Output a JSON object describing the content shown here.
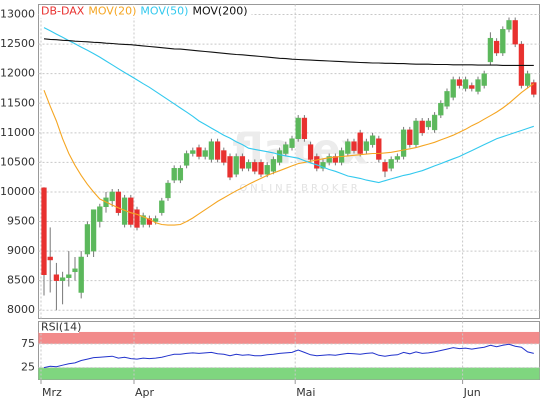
{
  "chart_data": [
    {
      "type": "candlestick",
      "name": "DB-DAX",
      "name_color": "#e8312f",
      "color_up": "#5cb85c",
      "color_down": "#e8312f",
      "categories": [
        "Mrz",
        null,
        null,
        null,
        null,
        null,
        null,
        null,
        null,
        null,
        null,
        null,
        null,
        null,
        null,
        "Apr",
        null,
        null,
        null,
        null,
        null,
        null,
        null,
        null,
        null,
        null,
        null,
        null,
        null,
        null,
        null,
        null,
        null,
        null,
        null,
        null,
        null,
        null,
        null,
        null,
        null,
        "Mai",
        null,
        null,
        null,
        null,
        null,
        null,
        null,
        null,
        null,
        null,
        null,
        null,
        null,
        null,
        null,
        null,
        null,
        null,
        null,
        null,
        null,
        null,
        null,
        null,
        null,
        null,
        "Jun",
        null,
        null,
        null,
        null,
        null,
        null,
        null,
        null,
        null,
        null,
        null
      ],
      "open": [
        10070,
        8900,
        8600,
        8500,
        8550,
        8650,
        8300,
        8950,
        9000,
        9500,
        9750,
        9850,
        10000,
        9450,
        9900,
        9700,
        9450,
        9550,
        9500,
        9650,
        9900,
        10200,
        10200,
        10450,
        10650,
        10750,
        10600,
        10550,
        10850,
        10700,
        10600,
        10300,
        10600,
        10400,
        10500,
        10500,
        10300,
        10350,
        10500,
        10650,
        10750,
        10900,
        11250,
        10800,
        10600,
        10400,
        10500,
        10600,
        10500,
        10650,
        10850,
        11000,
        10700,
        10800,
        10900,
        10500,
        10400,
        10550,
        10600,
        11050,
        10800,
        11200,
        11100,
        11050,
        11300,
        11450,
        11600,
        11900,
        11750,
        11800,
        11700,
        11800,
        12200,
        12550,
        12350,
        12750,
        12900,
        12500,
        11800,
        11850
      ],
      "high": [
        10080,
        9400,
        8800,
        8650,
        9000,
        8900,
        9000,
        9500,
        9700,
        9800,
        10000,
        10050,
        10050,
        9950,
        9950,
        9750,
        9650,
        9600,
        9600,
        9900,
        10200,
        10450,
        10450,
        10700,
        10750,
        10800,
        10750,
        10900,
        10900,
        10750,
        10650,
        10650,
        10650,
        10550,
        10550,
        10550,
        10500,
        10600,
        10750,
        10850,
        10950,
        11300,
        11300,
        10850,
        10650,
        10550,
        10650,
        10650,
        10750,
        10900,
        10900,
        11050,
        10900,
        11000,
        10950,
        10550,
        10600,
        10650,
        11100,
        11100,
        11250,
        11250,
        11250,
        11350,
        11550,
        11750,
        11950,
        11950,
        11950,
        11850,
        11950,
        12050,
        12700,
        12600,
        12800,
        12950,
        12950,
        12550,
        12050,
        11900
      ],
      "low": [
        8250,
        8300,
        8000,
        8100,
        8400,
        8500,
        8200,
        8900,
        8900,
        9400,
        9650,
        9750,
        9600,
        9400,
        9400,
        9350,
        9400,
        9400,
        9450,
        9600,
        9850,
        10150,
        10150,
        10400,
        10600,
        10550,
        10550,
        10500,
        10500,
        10450,
        10200,
        10250,
        10350,
        10350,
        10300,
        10250,
        10250,
        10300,
        10450,
        10600,
        10700,
        10850,
        10850,
        10500,
        10350,
        10350,
        10450,
        10450,
        10450,
        10600,
        10650,
        10600,
        10650,
        10750,
        10500,
        10250,
        10350,
        10500,
        10550,
        10750,
        10750,
        10950,
        11050,
        11000,
        11250,
        11400,
        11550,
        11750,
        11700,
        11700,
        11650,
        11750,
        12150,
        12300,
        12300,
        12700,
        12450,
        11750,
        11750,
        11600
      ],
      "close": [
        8600,
        8850,
        8500,
        8550,
        8600,
        8700,
        8900,
        9450,
        9700,
        9750,
        9900,
        10000,
        9650,
        9900,
        9450,
        9400,
        9600,
        9450,
        9550,
        9850,
        10150,
        10400,
        10400,
        10650,
        10700,
        10600,
        10700,
        10850,
        10550,
        10500,
        10250,
        10600,
        10400,
        10500,
        10350,
        10300,
        10450,
        10550,
        10700,
        10800,
        10900,
        11250,
        10900,
        10550,
        10400,
        10500,
        10600,
        10500,
        10700,
        10850,
        10700,
        10650,
        10850,
        10950,
        10550,
        10350,
        10550,
        10600,
        11050,
        10800,
        11200,
        11000,
        11200,
        11300,
        11500,
        11700,
        11900,
        11800,
        11900,
        11750,
        11900,
        12000,
        12600,
        12350,
        12750,
        12900,
        12500,
        11800,
        12000,
        11650
      ],
      "overlays": [
        {
          "name": "MOV(20)",
          "color": "#f5a623",
          "values": [
            11720,
            11450,
            11200,
            10900,
            10650,
            10450,
            10280,
            10130,
            10000,
            9880,
            9830,
            9780,
            9730,
            9690,
            9650,
            9620,
            9580,
            9540,
            9480,
            9450,
            9440,
            9440,
            9450,
            9500,
            9560,
            9630,
            9700,
            9770,
            9840,
            9900,
            9960,
            10020,
            10070,
            10130,
            10180,
            10230,
            10280,
            10320,
            10360,
            10400,
            10440,
            10480,
            10500,
            10520,
            10540,
            10560,
            10580,
            10590,
            10600,
            10610,
            10620,
            10630,
            10640,
            10650,
            10650,
            10660,
            10670,
            10690,
            10710,
            10730,
            10750,
            10780,
            10810,
            10840,
            10880,
            10920,
            10960,
            11010,
            11060,
            11120,
            11170,
            11230,
            11290,
            11350,
            11420,
            11500,
            11590,
            11680,
            11760,
            11830
          ]
        },
        {
          "name": "MOV(50)",
          "color": "#33c9ee",
          "values": [
            12780,
            12725,
            12670,
            12615,
            12560,
            12505,
            12450,
            12395,
            12340,
            12280,
            12215,
            12150,
            12085,
            12020,
            11960,
            11895,
            11830,
            11770,
            11700,
            11630,
            11560,
            11490,
            11420,
            11350,
            11280,
            11200,
            11140,
            11080,
            11020,
            10960,
            10910,
            10850,
            10800,
            10740,
            10720,
            10700,
            10680,
            10660,
            10630,
            10610,
            10590,
            10570,
            10530,
            10490,
            10460,
            10420,
            10380,
            10350,
            10310,
            10270,
            10250,
            10230,
            10200,
            10180,
            10160,
            10190,
            10220,
            10250,
            10280,
            10300,
            10330,
            10360,
            10400,
            10440,
            10480,
            10520,
            10560,
            10600,
            10650,
            10700,
            10750,
            10800,
            10850,
            10900,
            10935,
            10970,
            11005,
            11040,
            11075,
            11110
          ]
        },
        {
          "name": "MOV(200)",
          "color": "#111111",
          "values": [
            12590,
            12580,
            12575,
            12565,
            12560,
            12550,
            12545,
            12540,
            12530,
            12525,
            12515,
            12510,
            12500,
            12495,
            12490,
            12480,
            12470,
            12460,
            12450,
            12440,
            12430,
            12420,
            12415,
            12405,
            12395,
            12385,
            12375,
            12365,
            12355,
            12345,
            12335,
            12325,
            12320,
            12310,
            12300,
            12290,
            12280,
            12270,
            12260,
            12255,
            12245,
            12240,
            12235,
            12230,
            12225,
            12220,
            12215,
            12210,
            12205,
            12200,
            12195,
            12190,
            12185,
            12180,
            12180,
            12175,
            12175,
            12170,
            12170,
            12165,
            12160,
            12160,
            12160,
            12155,
            12155,
            12155,
            12150,
            12150,
            12150,
            12150,
            12145,
            12145,
            12145,
            12145,
            12140,
            12140,
            12140,
            12140,
            12140,
            12140
          ]
        }
      ],
      "ylim": [
        7860,
        13170
      ],
      "yticks": [
        8000,
        8500,
        9000,
        9500,
        10000,
        10500,
        11000,
        11500,
        12000,
        12500,
        13000
      ],
      "grid": true,
      "watermark": [
        "flatex",
        "ONLINE BROKER"
      ]
    },
    {
      "type": "line",
      "title": "RSI(14)",
      "color": "#2233cc",
      "values": [
        25,
        28,
        27,
        30,
        33,
        35,
        40,
        43,
        46,
        47,
        48,
        49,
        45,
        47,
        44,
        43,
        45,
        44,
        45,
        47,
        50,
        53,
        53,
        55,
        56,
        55,
        56,
        57,
        54,
        53,
        50,
        53,
        51,
        52,
        50,
        50,
        52,
        53,
        55,
        56,
        57,
        62,
        57,
        52,
        50,
        51,
        52,
        51,
        53,
        55,
        54,
        53,
        55,
        56,
        51,
        49,
        51,
        52,
        57,
        54,
        58,
        55,
        56,
        58,
        61,
        64,
        67,
        65,
        66,
        64,
        66,
        68,
        72,
        69,
        72,
        74,
        70,
        68,
        58,
        55
      ],
      "ylim": [
        0,
        122
      ],
      "yticks": [
        25,
        75
      ],
      "bands": [
        {
          "range": [
            75,
            100
          ],
          "color": "#f28b8b"
        },
        {
          "range": [
            0,
            25
          ],
          "color": "#7fd67f"
        }
      ]
    }
  ]
}
